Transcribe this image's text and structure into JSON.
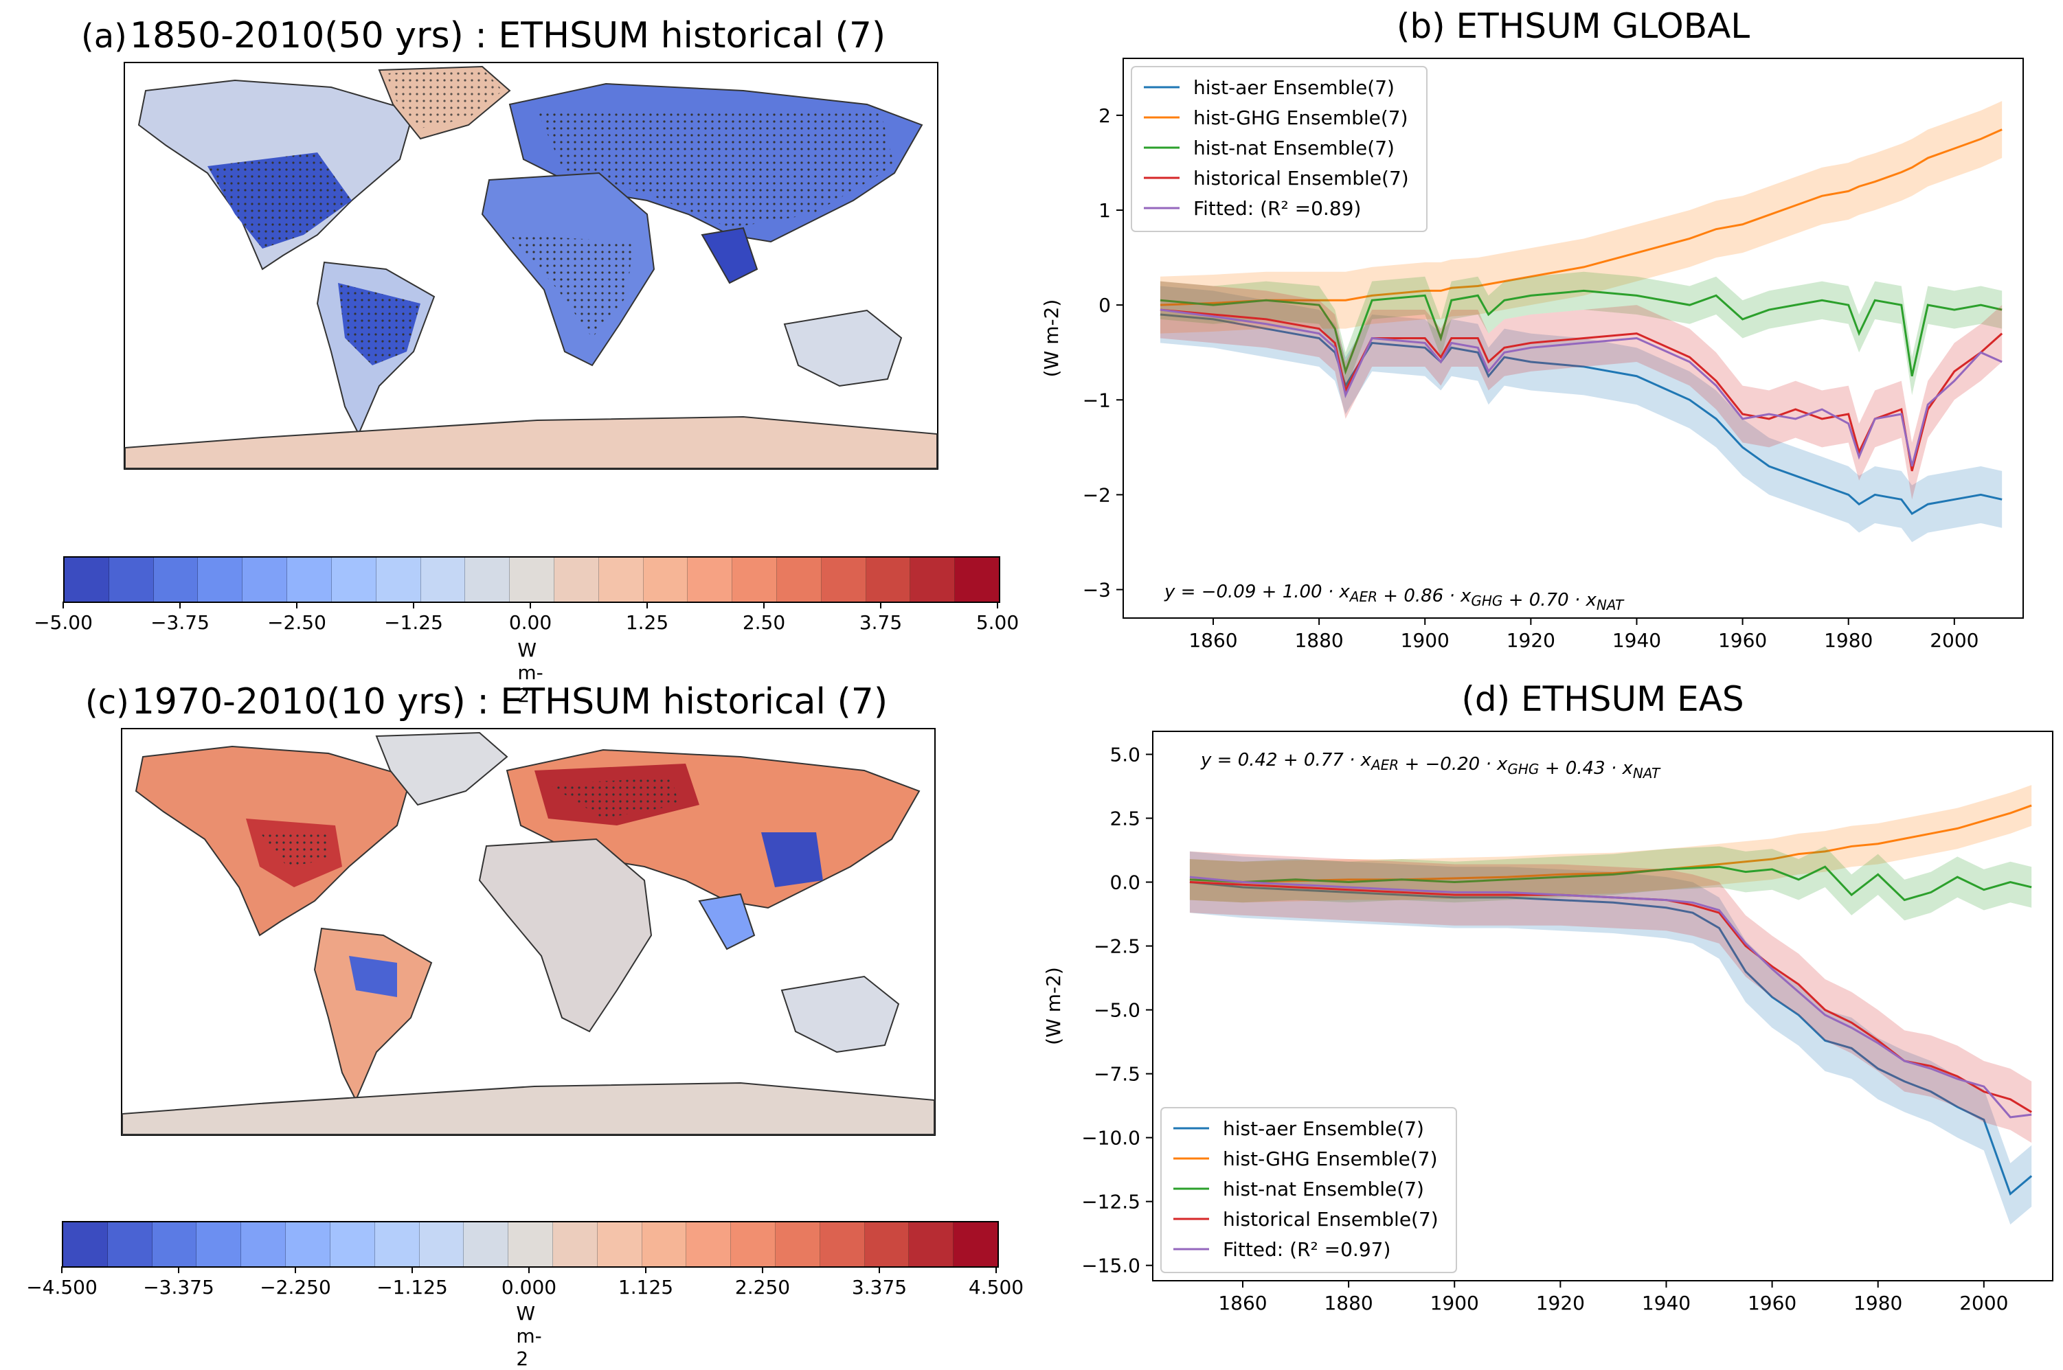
{
  "colors": {
    "aer": "#1f77b4",
    "ghg": "#ff7f0e",
    "nat": "#2ca02c",
    "hist": "#d62728",
    "fit": "#9467bd",
    "colormap": [
      "#3b4cc0",
      "#4a63d3",
      "#5b7be4",
      "#6c8ff1",
      "#7fa1f8",
      "#91b3fd",
      "#a3c2fe",
      "#b4cefb",
      "#c5d7f5",
      "#d4dbe6",
      "#e0dcd8",
      "#eccdbd",
      "#f4c3aa",
      "#f6b596",
      "#f6a283",
      "#f18f70",
      "#e87a5f",
      "#dc6250",
      "#cb4840",
      "#b72c33",
      "#a50f26"
    ]
  },
  "panel_a": {
    "label": "(a)",
    "title": "1850-2010(50 yrs) : ETHSUM historical (7)",
    "colorbar_ticks": [
      "−5.00",
      "−3.75",
      "−2.50",
      "−1.25",
      "0.00",
      "1.25",
      "2.50",
      "3.75",
      "5.00"
    ],
    "units": "W m-2"
  },
  "panel_c": {
    "label": "(c)",
    "title": "1970-2010(10 yrs) : ETHSUM historical (7)",
    "colorbar_ticks": [
      "−4.500",
      "−3.375",
      "−2.250",
      "−1.125",
      "0.000",
      "1.125",
      "2.250",
      "3.375",
      "4.500"
    ],
    "units": "W m-2"
  },
  "chart_data": [
    {
      "id": "b",
      "type": "line",
      "label": "(b)",
      "title": "ETHSUM GLOBAL",
      "ylabel": "(W m-2)",
      "xlabel": "",
      "xlim": [
        1843,
        2013
      ],
      "ylim": [
        -3.3,
        2.6
      ],
      "xticks": [
        1860,
        1880,
        1900,
        1920,
        1940,
        1960,
        1980,
        2000
      ],
      "yticks": [
        -3,
        -2,
        -1,
        0,
        1,
        2
      ],
      "legend_position": "top-left",
      "legend": [
        "hist-aer Ensemble(7)",
        "hist-GHG Ensemble(7)",
        "hist-nat Ensemble(7)",
        "historical Ensemble(7)",
        "Fitted:  (R² =0.89)"
      ],
      "equation": "y = −0.09 + 1.00 · x_AER + 0.86 · x_GHG + 0.70 · x_NAT",
      "x": [
        1850,
        1860,
        1870,
        1880,
        1883,
        1885,
        1890,
        1900,
        1903,
        1905,
        1910,
        1912,
        1915,
        1920,
        1930,
        1940,
        1950,
        1955,
        1960,
        1965,
        1970,
        1975,
        1980,
        1982,
        1985,
        1990,
        1992,
        1995,
        2000,
        2005,
        2009
      ],
      "series": [
        {
          "name": "hist-aer Ensemble(7)",
          "key": "aer",
          "values": [
            -0.1,
            -0.15,
            -0.25,
            -0.35,
            -0.5,
            -0.85,
            -0.4,
            -0.45,
            -0.6,
            -0.45,
            -0.5,
            -0.75,
            -0.55,
            -0.6,
            -0.65,
            -0.75,
            -1.0,
            -1.2,
            -1.5,
            -1.7,
            -1.8,
            -1.9,
            -2.0,
            -2.1,
            -2.0,
            -2.05,
            -2.2,
            -2.1,
            -2.05,
            -2.0,
            -2.05
          ],
          "band": 0.3
        },
        {
          "name": "hist-GHG Ensemble(7)",
          "key": "ghg",
          "values": [
            0.0,
            0.02,
            0.05,
            0.05,
            0.05,
            0.05,
            0.1,
            0.15,
            0.15,
            0.18,
            0.2,
            0.22,
            0.25,
            0.3,
            0.4,
            0.55,
            0.7,
            0.8,
            0.85,
            0.95,
            1.05,
            1.15,
            1.2,
            1.25,
            1.3,
            1.4,
            1.45,
            1.55,
            1.65,
            1.75,
            1.85
          ],
          "band": 0.3
        },
        {
          "name": "hist-nat Ensemble(7)",
          "key": "nat",
          "values": [
            0.05,
            0.0,
            0.05,
            0.0,
            -0.25,
            -0.7,
            0.05,
            0.1,
            -0.35,
            0.05,
            0.1,
            -0.1,
            0.05,
            0.1,
            0.15,
            0.1,
            0.0,
            0.1,
            -0.15,
            -0.05,
            0.0,
            0.05,
            0.0,
            -0.3,
            0.05,
            0.0,
            -0.75,
            0.0,
            -0.05,
            0.0,
            -0.05
          ],
          "band": 0.2
        },
        {
          "name": "historical Ensemble(7)",
          "key": "hist",
          "values": [
            -0.05,
            -0.1,
            -0.15,
            -0.25,
            -0.4,
            -0.9,
            -0.35,
            -0.35,
            -0.55,
            -0.35,
            -0.35,
            -0.6,
            -0.45,
            -0.4,
            -0.35,
            -0.3,
            -0.55,
            -0.8,
            -1.15,
            -1.2,
            -1.1,
            -1.2,
            -1.15,
            -1.55,
            -1.2,
            -1.1,
            -1.75,
            -1.1,
            -0.7,
            -0.5,
            -0.3
          ],
          "band": 0.3
        },
        {
          "name": "Fitted:  (R² =0.89)",
          "key": "fit",
          "values": [
            -0.05,
            -0.12,
            -0.2,
            -0.3,
            -0.45,
            -0.95,
            -0.35,
            -0.4,
            -0.6,
            -0.4,
            -0.45,
            -0.7,
            -0.5,
            -0.45,
            -0.4,
            -0.35,
            -0.6,
            -0.85,
            -1.2,
            -1.15,
            -1.2,
            -1.1,
            -1.25,
            -1.6,
            -1.2,
            -1.15,
            -1.7,
            -1.05,
            -0.8,
            -0.5,
            -0.6
          ],
          "band": 0
        }
      ]
    },
    {
      "id": "d",
      "type": "line",
      "label": "(d)",
      "title": "ETHSUM EAS",
      "ylabel": "(W m-2)",
      "xlabel": "",
      "xlim": [
        1843,
        2013
      ],
      "ylim": [
        -15.6,
        5.9
      ],
      "xticks": [
        1860,
        1880,
        1900,
        1920,
        1940,
        1960,
        1980,
        2000
      ],
      "yticks": [
        -15.0,
        -12.5,
        -10.0,
        -7.5,
        -5.0,
        -2.5,
        0.0,
        2.5,
        5.0
      ],
      "legend_position": "bottom-left",
      "legend": [
        "hist-aer Ensemble(7)",
        "hist-GHG Ensemble(7)",
        "hist-nat Ensemble(7)",
        "historical Ensemble(7)",
        "Fitted:  (R² =0.97)"
      ],
      "equation": "y = 0.42 + 0.77 · x_AER + −0.20 · x_GHG + 0.43 · x_NAT",
      "x": [
        1850,
        1860,
        1870,
        1880,
        1890,
        1900,
        1910,
        1920,
        1930,
        1940,
        1945,
        1950,
        1955,
        1960,
        1965,
        1970,
        1975,
        1980,
        1985,
        1990,
        1995,
        2000,
        2005,
        2009
      ],
      "series": [
        {
          "name": "hist-aer Ensemble(7)",
          "key": "aer",
          "values": [
            0.0,
            -0.2,
            -0.3,
            -0.4,
            -0.5,
            -0.6,
            -0.6,
            -0.7,
            -0.8,
            -1.0,
            -1.2,
            -1.8,
            -3.5,
            -4.5,
            -5.2,
            -6.2,
            -6.5,
            -7.3,
            -7.8,
            -8.2,
            -8.8,
            -9.3,
            -12.2,
            -11.5
          ],
          "band": 1.2
        },
        {
          "name": "hist-GHG Ensemble(7)",
          "key": "ghg",
          "values": [
            0.1,
            0.0,
            0.05,
            0.1,
            0.1,
            0.15,
            0.2,
            0.3,
            0.35,
            0.5,
            0.6,
            0.7,
            0.8,
            0.9,
            1.1,
            1.2,
            1.4,
            1.5,
            1.7,
            1.9,
            2.1,
            2.4,
            2.7,
            3.0
          ],
          "band": 0.8
        },
        {
          "name": "hist-nat Ensemble(7)",
          "key": "nat",
          "values": [
            0.1,
            0.0,
            0.1,
            0.0,
            0.1,
            0.0,
            0.1,
            0.2,
            0.3,
            0.5,
            0.55,
            0.6,
            0.4,
            0.5,
            0.1,
            0.6,
            -0.5,
            0.3,
            -0.7,
            -0.4,
            0.2,
            -0.3,
            0.0,
            -0.2
          ],
          "band": 0.8
        },
        {
          "name": "historical Ensemble(7)",
          "key": "hist",
          "values": [
            0.0,
            -0.1,
            -0.2,
            -0.3,
            -0.4,
            -0.5,
            -0.5,
            -0.5,
            -0.6,
            -0.7,
            -0.9,
            -1.2,
            -2.5,
            -3.3,
            -4.0,
            -5.0,
            -5.5,
            -6.2,
            -7.0,
            -7.2,
            -7.6,
            -8.2,
            -8.5,
            -9.0
          ],
          "band": 1.2
        },
        {
          "name": "Fitted:  (R² =0.97)",
          "key": "fit",
          "values": [
            0.2,
            0.0,
            -0.1,
            -0.2,
            -0.3,
            -0.4,
            -0.4,
            -0.5,
            -0.6,
            -0.7,
            -0.8,
            -1.1,
            -2.4,
            -3.4,
            -4.3,
            -5.2,
            -5.7,
            -6.3,
            -7.0,
            -7.3,
            -7.7,
            -8.0,
            -9.2,
            -9.1
          ],
          "band": 0
        }
      ]
    }
  ]
}
